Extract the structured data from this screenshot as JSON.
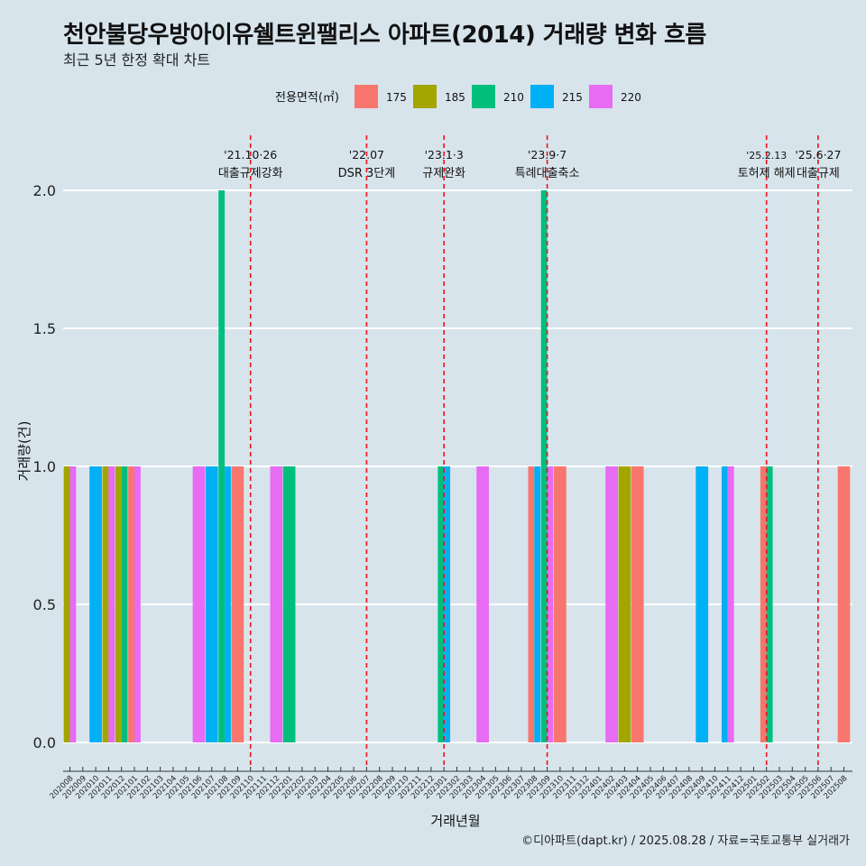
{
  "header": {
    "title": "천안불당우방아이유쉘트윈팰리스 아파트(2014) 거래량 변화 흐름",
    "subtitle": "최근 5년 한정 확대 차트"
  },
  "caption": "©디아파트(dapt.kr) / 2025.08.28 / 자료=국토교통부 실거래가",
  "chart_data": {
    "type": "bar",
    "xlabel": "거래년월",
    "ylabel": "거래량(건)",
    "ylim": [
      0,
      2
    ],
    "yticks": [
      "0.0",
      "0.5",
      "1.0",
      "1.5",
      "2.0"
    ],
    "grid": true,
    "legend": {
      "title": "전용면적(㎡)",
      "position": "top"
    },
    "categories": [
      "202008",
      "202009",
      "202010",
      "202011",
      "202012",
      "202101",
      "202102",
      "202103",
      "202104",
      "202105",
      "202106",
      "202107",
      "202108",
      "202109",
      "202110",
      "202111",
      "202112",
      "202201",
      "202202",
      "202203",
      "202204",
      "202205",
      "202206",
      "202207",
      "202208",
      "202209",
      "202210",
      "202211",
      "202212",
      "202301",
      "202302",
      "202303",
      "202304",
      "202305",
      "202306",
      "202307",
      "202308",
      "202309",
      "202310",
      "202311",
      "202312",
      "202401",
      "202402",
      "202403",
      "202404",
      "202405",
      "202406",
      "202407",
      "202408",
      "202409",
      "202410",
      "202411",
      "202412",
      "202501",
      "202502",
      "202503",
      "202504",
      "202505",
      "202506",
      "202507",
      "202508"
    ],
    "series": [
      {
        "name": "175",
        "color": "#F8766D",
        "values": {
          "202101": 1,
          "202109": 1,
          "202308": 1,
          "202310": 1,
          "202404": 1,
          "202502": 1,
          "202508": 1
        }
      },
      {
        "name": "185",
        "color": "#A3A500",
        "values": {
          "202008": 1,
          "202011": 1,
          "202012": 1,
          "202403": 1
        }
      },
      {
        "name": "210",
        "color": "#00BF7D",
        "values": {
          "202012": 1,
          "202108": 2,
          "202201": 1,
          "202301": 1,
          "202309": 2,
          "202502": 1
        }
      },
      {
        "name": "215",
        "color": "#00B0F6",
        "values": {
          "202010": 1,
          "202107": 1,
          "202108": 1,
          "202301": 1,
          "202308": 1,
          "202409": 1,
          "202411": 1
        }
      },
      {
        "name": "220",
        "color": "#E76BF3",
        "values": {
          "202008": 1,
          "202011": 1,
          "202101": 1,
          "202106": 1,
          "202112": 1,
          "202304": 1,
          "202309": 1,
          "202402": 1,
          "202411": 1
        }
      }
    ],
    "annotations": [
      {
        "at": "202110",
        "date": "'21.10·26",
        "label": "대출규제강화"
      },
      {
        "at": "202207",
        "date": "'22.07",
        "label": "DSR 3단계"
      },
      {
        "at": "202301",
        "date": "'23.1·3",
        "label": "규제완화"
      },
      {
        "at": "202309",
        "date": "'23.9·7",
        "label": "특례대출축소"
      },
      {
        "at": "202502",
        "date": "'25.2.13",
        "label": "토허제 해제"
      },
      {
        "at": "202506",
        "date": "'25.6·27",
        "label": "대출규제"
      }
    ]
  }
}
